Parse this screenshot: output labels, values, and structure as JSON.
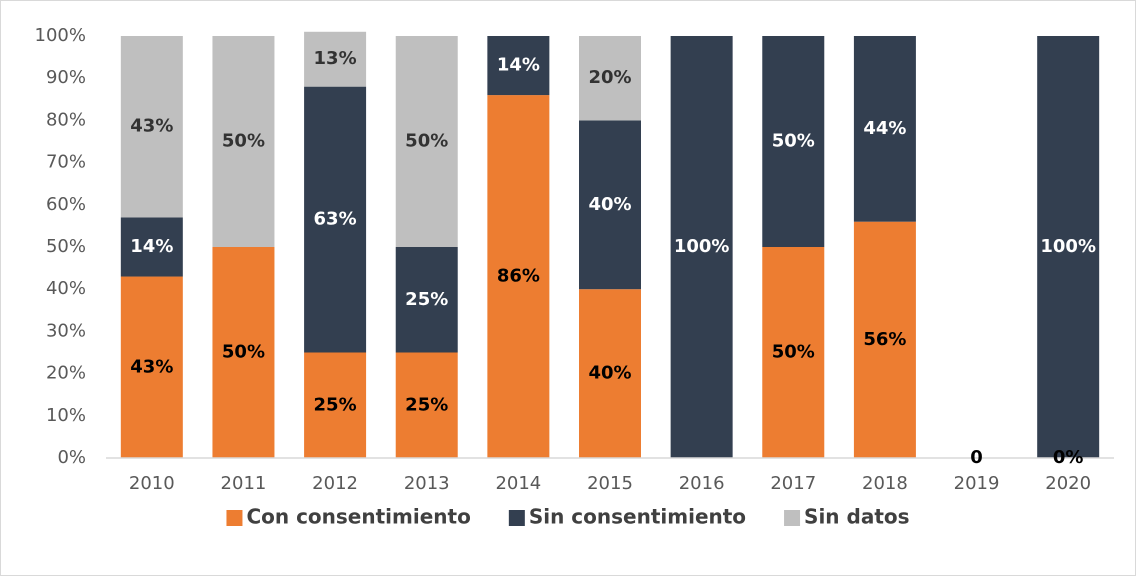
{
  "chart_data": {
    "type": "stacked_bar",
    "categories": [
      "2010",
      "2011",
      "2012",
      "2013",
      "2014",
      "2015",
      "2016",
      "2017",
      "2018",
      "2019",
      "2020"
    ],
    "series": [
      {
        "name": "Con consentimiento",
        "color": "#ED7D31",
        "label_color": "#000000",
        "values": [
          43,
          50,
          25,
          25,
          86,
          40,
          0,
          50,
          56,
          0,
          0
        ],
        "value_labels": [
          "43%",
          "50%",
          "25%",
          "25%",
          "86%",
          "40%",
          null,
          "50%",
          "56%",
          "0",
          "0%"
        ]
      },
      {
        "name": "Sin consentimiento",
        "color": "#333F50",
        "label_color": "#FFFFFF",
        "values": [
          14,
          0,
          63,
          25,
          14,
          40,
          100,
          50,
          44,
          0,
          100
        ],
        "value_labels": [
          "14%",
          null,
          "63%",
          "25%",
          "14%",
          "40%",
          "100%",
          "50%",
          "44%",
          null,
          "100%"
        ]
      },
      {
        "name": "Sin datos",
        "color": "#BFBFBF",
        "label_color": "#333333",
        "values": [
          43,
          50,
          13,
          50,
          0,
          20,
          0,
          0,
          0,
          0,
          0
        ],
        "value_labels": [
          "43%",
          "50%",
          "13%",
          "50%",
          null,
          "20%",
          null,
          null,
          null,
          null,
          null
        ]
      }
    ],
    "ylim": [
      0,
      100
    ],
    "yticks": [
      {
        "value": 0,
        "label": "0%"
      },
      {
        "value": 10,
        "label": "10%"
      },
      {
        "value": 20,
        "label": "20%"
      },
      {
        "value": 30,
        "label": "30%"
      },
      {
        "value": 40,
        "label": "40%"
      },
      {
        "value": 50,
        "label": "50%"
      },
      {
        "value": 60,
        "label": "60%"
      },
      {
        "value": 70,
        "label": "70%"
      },
      {
        "value": 80,
        "label": "80%"
      },
      {
        "value": 90,
        "label": "90%"
      },
      {
        "value": 100,
        "label": "100%"
      }
    ],
    "grid": false,
    "legend": "bottom"
  }
}
